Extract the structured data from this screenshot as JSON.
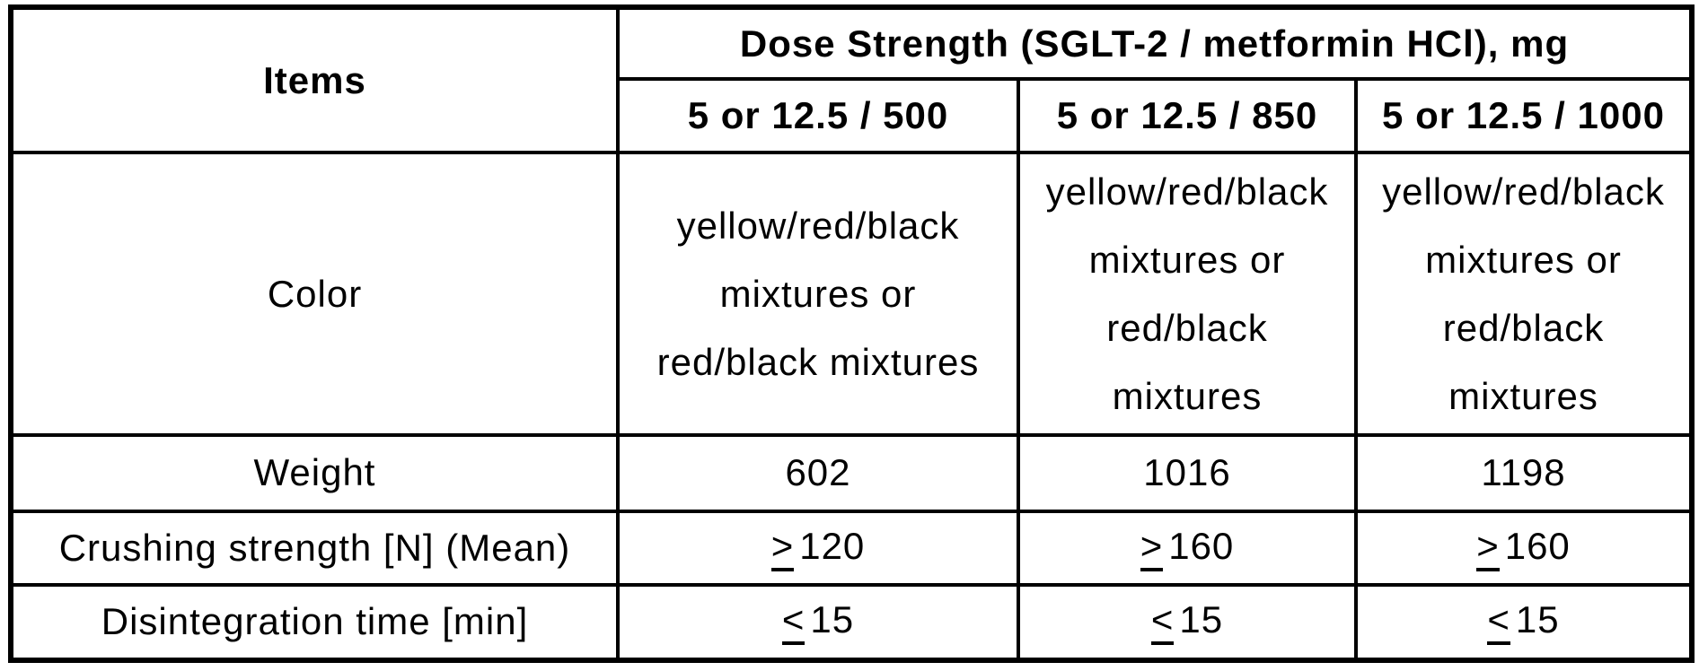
{
  "table": {
    "header": {
      "items": "Items",
      "dose_strength": "Dose Strength (SGLT-2 / metformin HCl), mg",
      "dose_columns": [
        "5 or 12.5 / 500",
        "5 or 12.5 / 850",
        "5 or 12.5 / 1000"
      ]
    },
    "rows": {
      "color": {
        "label": "Color",
        "values": [
          {
            "lines": [
              "yellow/red/black",
              "mixtures or",
              "red/black mixtures"
            ]
          },
          {
            "lines": [
              "yellow/red/black",
              "mixtures or",
              "red/black",
              "mixtures"
            ]
          },
          {
            "lines": [
              "yellow/red/black",
              "mixtures or",
              "red/black",
              "mixtures"
            ]
          }
        ]
      },
      "weight": {
        "label": "Weight",
        "values": [
          "602",
          "1016",
          "1198"
        ]
      },
      "crushing_strength": {
        "label": "Crushing strength [N] (Mean)",
        "values": [
          {
            "op": ">",
            "num": "120"
          },
          {
            "op": ">",
            "num": "160"
          },
          {
            "op": ">",
            "num": "160"
          }
        ]
      },
      "disintegration_time": {
        "label": "Disintegration time [min]",
        "values": [
          {
            "op": "<",
            "num": "15"
          },
          {
            "op": "<",
            "num": "15"
          },
          {
            "op": "<",
            "num": "15"
          }
        ]
      }
    },
    "colors": {
      "text": "#000000",
      "background": "#ffffff",
      "border": "#000000"
    }
  }
}
